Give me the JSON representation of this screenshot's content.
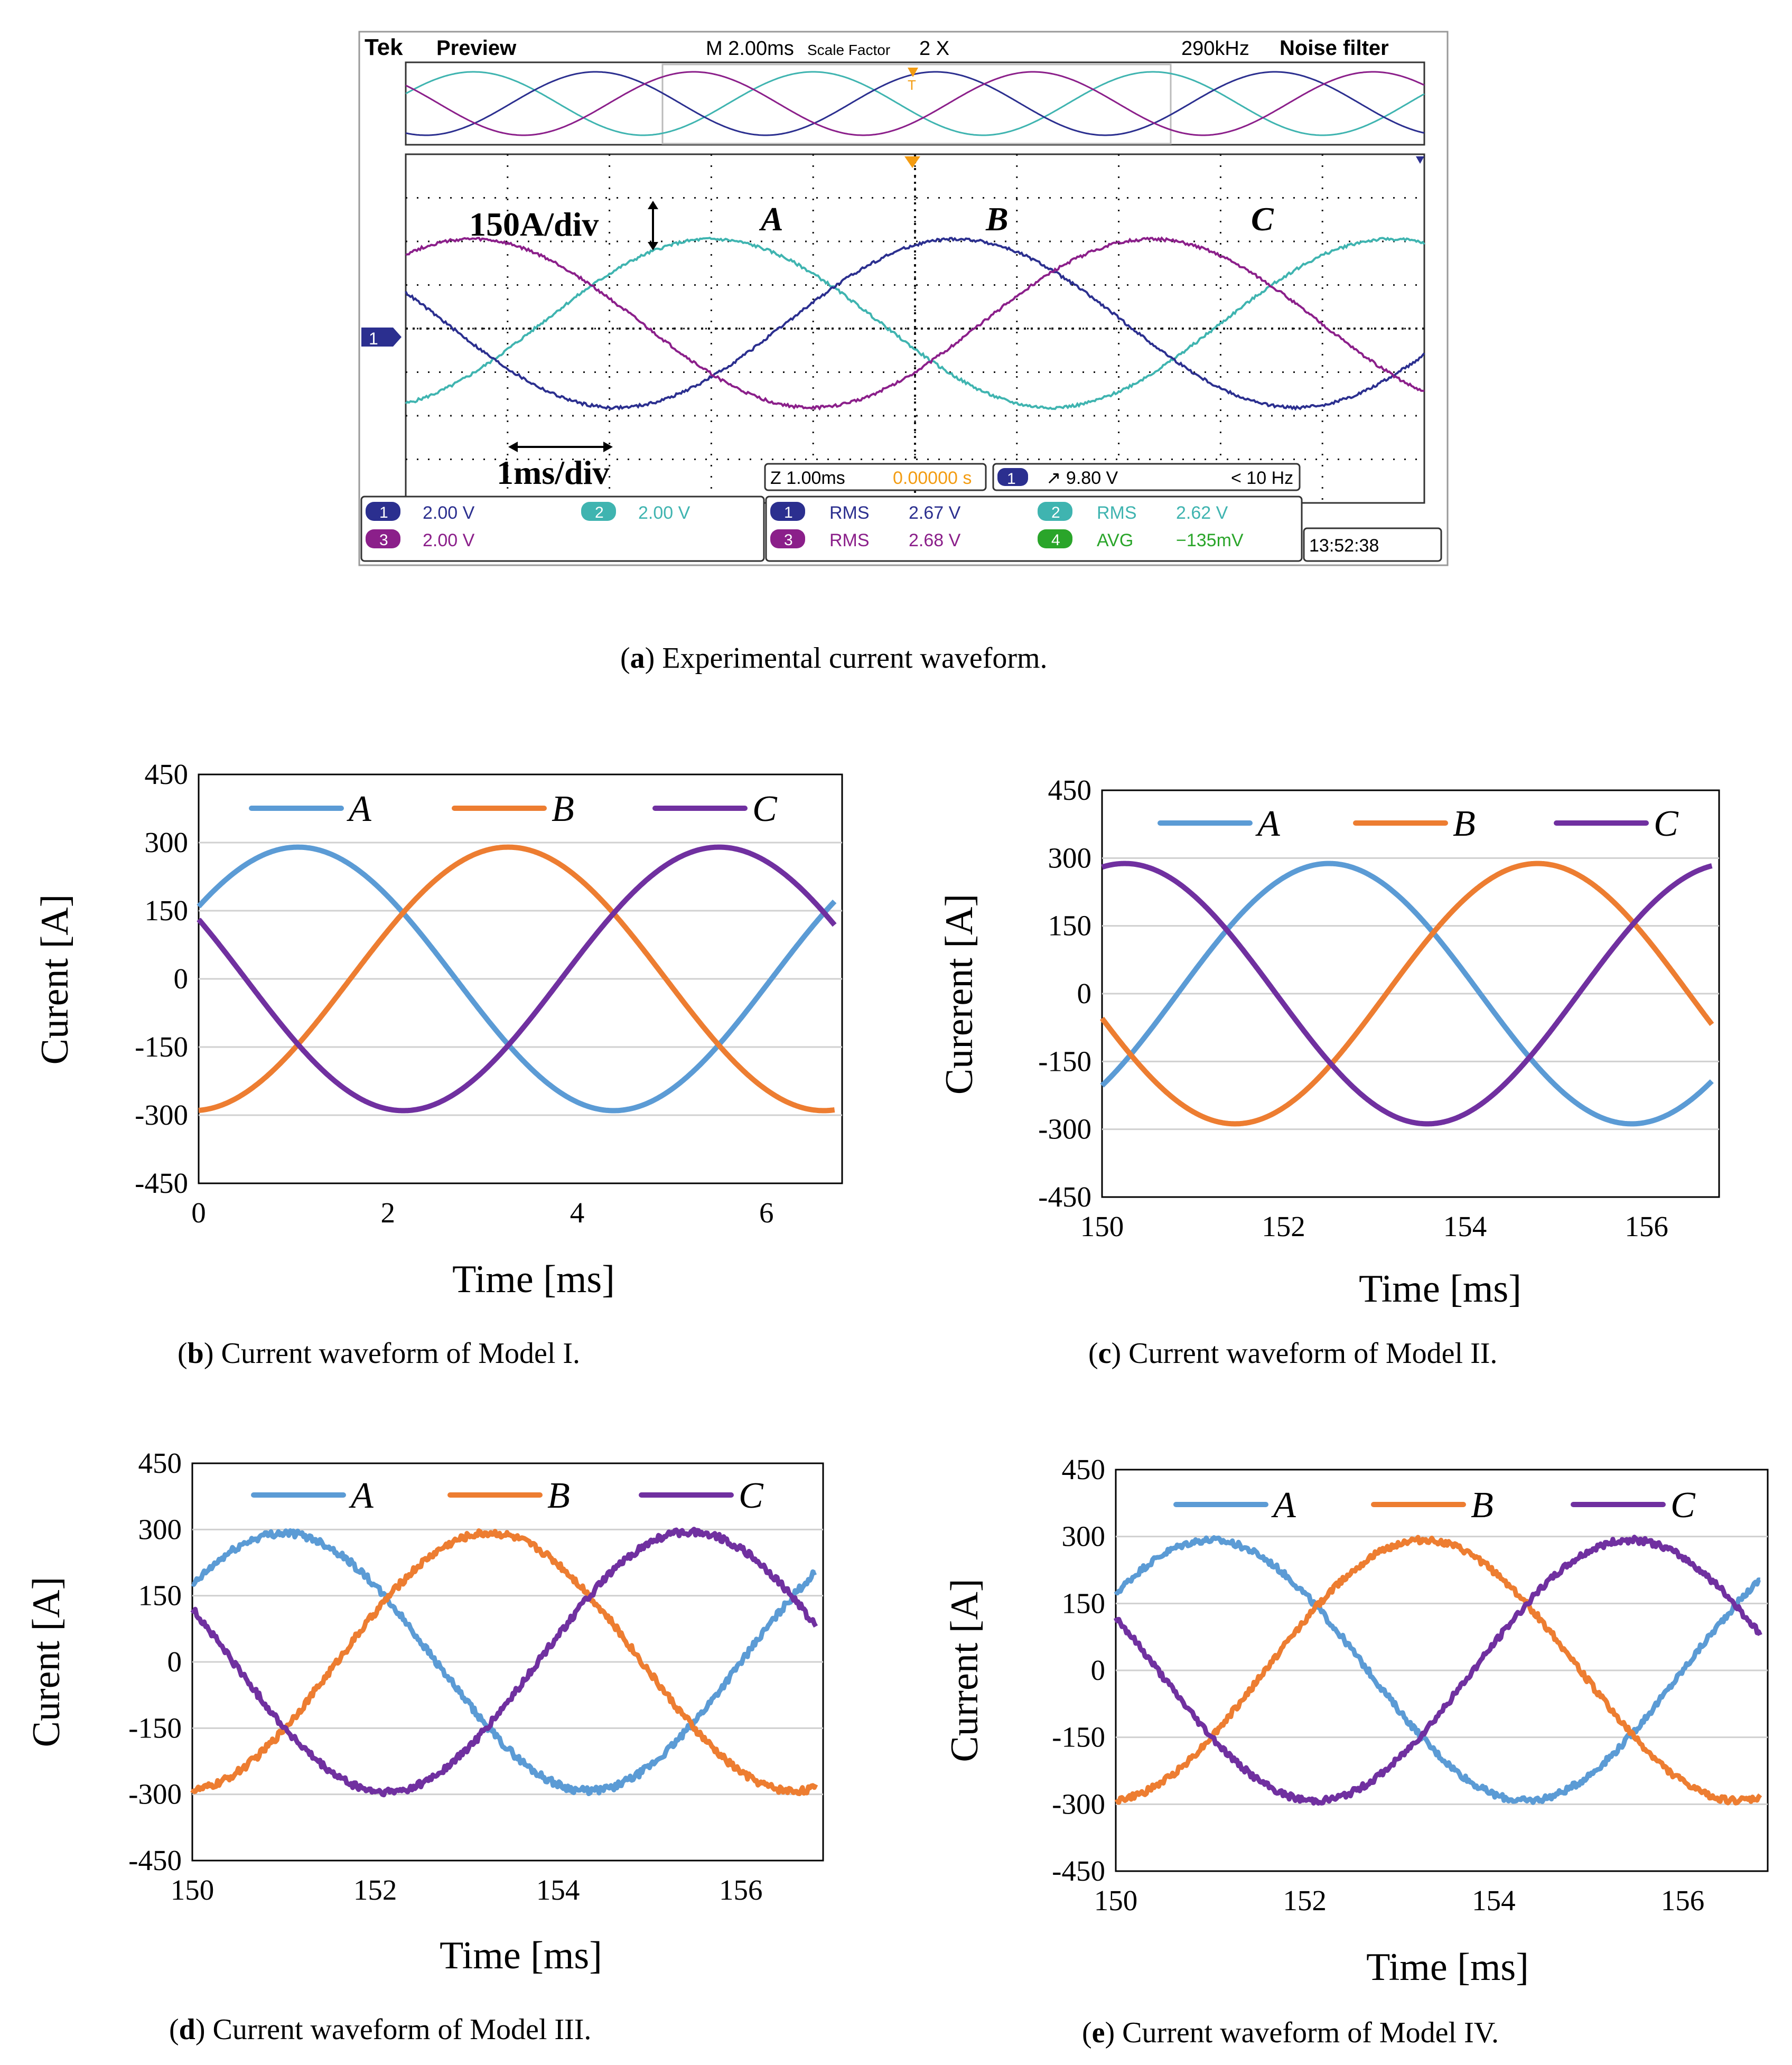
{
  "scope": {
    "brand": "Tek",
    "mode": "Preview",
    "timebase": "M 2.00ms",
    "scale_factor_label": "Scale Factor",
    "scale_factor_value": "2 X",
    "sample_rate": "290kHz",
    "filter": "Noise filter",
    "vdiv_label": "150A/div",
    "tdiv_label": "1ms/div",
    "phase_labels": [
      "A",
      "B",
      "C"
    ],
    "ch1_marker": "1",
    "zoom": "Z 1.00ms",
    "zoom_pos": "0.00000 s",
    "trig_ch": "1",
    "trig_level": "↗ 9.80 V",
    "trig_freq": "< 10 Hz",
    "ch_settings": [
      {
        "ch": "1",
        "value": "2.00 V",
        "color": "#2b2f8f"
      },
      {
        "ch": "2",
        "value": "2.00 V",
        "color": "#3fb4b0"
      },
      {
        "ch": "3",
        "value": "2.00 V",
        "color": "#8b1f8a"
      }
    ],
    "measurements": [
      {
        "ch": "1",
        "type": "RMS",
        "value": "2.67 V",
        "color": "#2b2f8f"
      },
      {
        "ch": "2",
        "type": "RMS",
        "value": "2.62 V",
        "color": "#3fb4b0"
      },
      {
        "ch": "3",
        "type": "RMS",
        "value": "2.68 V",
        "color": "#8b1f8a"
      },
      {
        "ch": "4",
        "type": "AVG",
        "value": "−135mV",
        "color": "#2aa52a"
      }
    ],
    "clock": "13:52:38"
  },
  "captions": {
    "a": {
      "letter": "a",
      "text": " Experimental current waveform."
    },
    "b": {
      "letter": "b",
      "text": " Current waveform of Model I."
    },
    "c": {
      "letter": "c",
      "text": " Current waveform of Model II."
    },
    "d": {
      "letter": "d",
      "text": " Current waveform of Model III."
    },
    "e": {
      "letter": "e",
      "text": " Current waveform of Model IV."
    }
  },
  "chart_data": [
    {
      "id": "a",
      "type": "line",
      "title": "Experimental current waveform",
      "xlabel": "1ms/div",
      "ylabel": "150A/div",
      "series": [
        {
          "name": "A",
          "color": "#3fb4b0",
          "amp": 290,
          "peak_ms": 6.3
        },
        {
          "name": "B",
          "color": "#2b2f8f",
          "amp": 290,
          "peak_ms": 8.7
        },
        {
          "name": "C",
          "color": "#8b1f8a",
          "amp": 290,
          "peak_ms": 3.95
        }
      ]
    },
    {
      "id": "b",
      "type": "line",
      "title": "Current waveform of Model I",
      "xlabel": "Time [ms]",
      "ylabel": "Curent [A]",
      "xlim": [
        0,
        6.8
      ],
      "xticks": [
        "0",
        "2",
        "4",
        "6"
      ],
      "xtick_vals": [
        0,
        2,
        4,
        6
      ],
      "ylim": [
        -450,
        450
      ],
      "yticks": [
        "450",
        "300",
        "150",
        "0",
        "-150",
        "-300",
        "-450"
      ],
      "yticks_vals": [
        450,
        300,
        150,
        0,
        -150,
        -300,
        -450
      ],
      "noise": 0,
      "period_ms": 6.67,
      "series": [
        {
          "name": "A",
          "color": "#5b9bd5",
          "amp": 290,
          "peak_ms": 1.05
        },
        {
          "name": "B",
          "color": "#ed7d31",
          "amp": 290,
          "peak_ms": 3.27
        },
        {
          "name": "C",
          "color": "#7030a0",
          "amp": 290,
          "peak_ms": 5.5
        }
      ]
    },
    {
      "id": "c",
      "type": "line",
      "title": "Current waveform of Model II",
      "xlabel": "Time [ms]",
      "ylabel": "Curerent [A]",
      "xlim": [
        150,
        156.8
      ],
      "xticks": [
        "150",
        "152",
        "154",
        "156"
      ],
      "xtick_vals": [
        150,
        152,
        154,
        156
      ],
      "ylim": [
        -450,
        450
      ],
      "yticks": [
        "450",
        "300",
        "150",
        "0",
        "-150",
        "-300",
        "-450"
      ],
      "yticks_vals": [
        450,
        300,
        150,
        0,
        -150,
        -300,
        -450
      ],
      "noise": 0,
      "period_ms": 6.67,
      "series": [
        {
          "name": "A",
          "color": "#5b9bd5",
          "amp": 288,
          "peak_ms": 152.5
        },
        {
          "name": "B",
          "color": "#ed7d31",
          "amp": 288,
          "peak_ms": 154.8
        },
        {
          "name": "C",
          "color": "#7030a0",
          "amp": 288,
          "peak_ms": 150.25
        }
      ]
    },
    {
      "id": "d",
      "type": "line",
      "title": "Current waveform of Model III",
      "xlabel": "Time [ms]",
      "ylabel": "Curent [A]",
      "xlim": [
        150,
        156.9
      ],
      "xticks": [
        "150",
        "152",
        "154",
        "156"
      ],
      "xtick_vals": [
        150,
        152,
        154,
        156
      ],
      "ylim": [
        -450,
        450
      ],
      "yticks": [
        "450",
        "300",
        "150",
        "0",
        "-150",
        "-300",
        "-450"
      ],
      "yticks_vals": [
        450,
        300,
        150,
        0,
        -150,
        -300,
        -450
      ],
      "noise": 8,
      "period_ms": 6.67,
      "series": [
        {
          "name": "A",
          "color": "#5b9bd5",
          "amp": 292,
          "peak_ms": 151.0
        },
        {
          "name": "B",
          "color": "#ed7d31",
          "amp": 292,
          "peak_ms": 153.25
        },
        {
          "name": "C",
          "color": "#7030a0",
          "amp": 295,
          "peak_ms": 155.45
        }
      ]
    },
    {
      "id": "e",
      "type": "line",
      "title": "Current waveform of Model IV",
      "xlabel": "Time [ms]",
      "ylabel": "Current [A]",
      "xlim": [
        150,
        156.9
      ],
      "xticks": [
        "150",
        "152",
        "154",
        "156"
      ],
      "xtick_vals": [
        150,
        152,
        154,
        156
      ],
      "ylim": [
        -450,
        450
      ],
      "yticks": [
        "450",
        "300",
        "150",
        "0",
        "-150",
        "-300",
        "-450"
      ],
      "yticks_vals": [
        450,
        300,
        150,
        0,
        -150,
        -300,
        -450
      ],
      "noise": 7,
      "period_ms": 6.67,
      "series": [
        {
          "name": "A",
          "color": "#5b9bd5",
          "amp": 292,
          "peak_ms": 151.0
        },
        {
          "name": "B",
          "color": "#ed7d31",
          "amp": 292,
          "peak_ms": 153.25
        },
        {
          "name": "C",
          "color": "#7030a0",
          "amp": 292,
          "peak_ms": 155.45
        }
      ]
    }
  ]
}
